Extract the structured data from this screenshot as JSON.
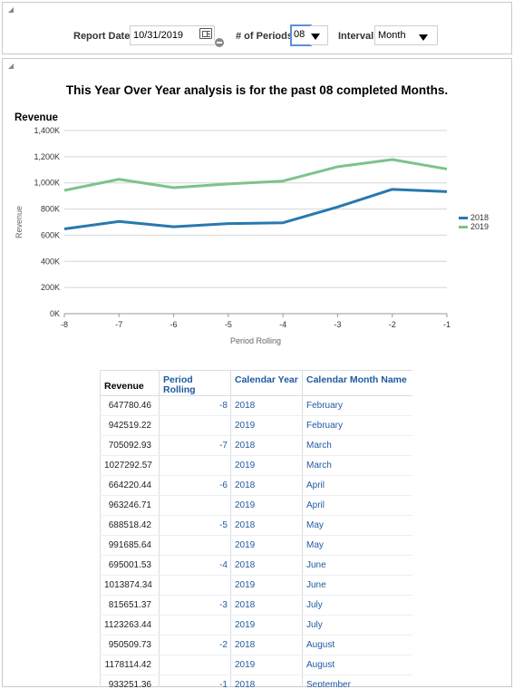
{
  "prompts": {
    "report_date_label": "Report Date",
    "report_date_value": "10/31/2019",
    "periods_label": "# of Periods",
    "periods_value": "08",
    "interval_label": "Interval",
    "interval_value": "Month"
  },
  "title": "This Year Over Year analysis is for the past 08 completed Months.",
  "chart_data": {
    "type": "line",
    "title": "Revenue",
    "xlabel": "Period Rolling",
    "ylabel": "Revenue",
    "x": [
      -8,
      -7,
      -6,
      -5,
      -4,
      -3,
      -2,
      -1
    ],
    "xlim": [
      -8,
      -1
    ],
    "ylim": [
      0,
      1400000
    ],
    "y_ticks": [
      0,
      200000,
      400000,
      600000,
      800000,
      1000000,
      1200000,
      1400000
    ],
    "y_tick_labels": [
      "0K",
      "200K",
      "400K",
      "600K",
      "800K",
      "1,000K",
      "1,200K",
      "1,400K"
    ],
    "x_tick_labels": [
      "-8",
      "-7",
      "-6",
      "-5",
      "-4",
      "-3",
      "-2",
      "-1"
    ],
    "grid": true,
    "legend": "right",
    "series": [
      {
        "name": "2018",
        "color": "#2878b0",
        "values": [
          647780.46,
          705092.93,
          664220.44,
          688518.42,
          695001.53,
          815651.37,
          950509.73,
          933251.36
        ]
      },
      {
        "name": "2019",
        "color": "#7dc38b",
        "values": [
          942519.22,
          1027292.57,
          963246.71,
          991685.64,
          1013874.34,
          1123263.44,
          1178114.42,
          1106000
        ]
      }
    ]
  },
  "table": {
    "headers": [
      "Revenue",
      "Period Rolling",
      "Calendar Year",
      "Calendar Month Name"
    ],
    "rows": [
      [
        "647780.46",
        "-8",
        "2018",
        "February"
      ],
      [
        "942519.22",
        "",
        "2019",
        "February"
      ],
      [
        "705092.93",
        "-7",
        "2018",
        "March"
      ],
      [
        "1027292.57",
        "",
        "2019",
        "March"
      ],
      [
        "664220.44",
        "-6",
        "2018",
        "April"
      ],
      [
        "963246.71",
        "",
        "2019",
        "April"
      ],
      [
        "688518.42",
        "-5",
        "2018",
        "May"
      ],
      [
        "991685.64",
        "",
        "2019",
        "May"
      ],
      [
        "695001.53",
        "-4",
        "2018",
        "June"
      ],
      [
        "1013874.34",
        "",
        "2019",
        "June"
      ],
      [
        "815651.37",
        "-3",
        "2018",
        "July"
      ],
      [
        "1123263.44",
        "",
        "2019",
        "July"
      ],
      [
        "950509.73",
        "-2",
        "2018",
        "August"
      ],
      [
        "1178114.42",
        "",
        "2019",
        "August"
      ],
      [
        "933251.36",
        "-1",
        "2018",
        "September"
      ]
    ]
  }
}
